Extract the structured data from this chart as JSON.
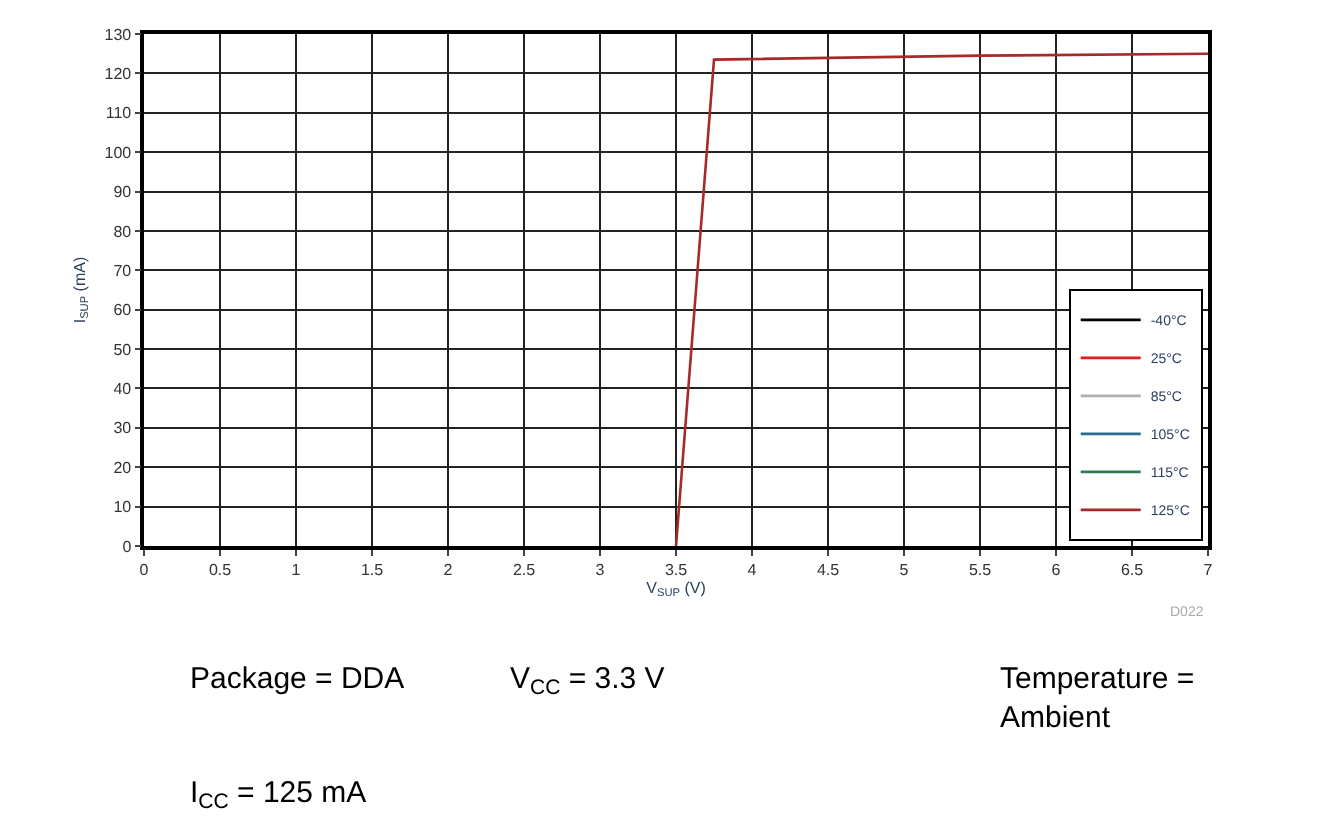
{
  "chart_data": {
    "type": "line",
    "xlabel": "V$_{SUP}$ (V)",
    "ylabel": "I$_{SUP}$ (mA)",
    "xlim": [
      0,
      7
    ],
    "xticks": [
      0,
      0.5,
      1,
      1.5,
      2,
      2.5,
      3,
      3.5,
      4,
      4.5,
      5,
      5.5,
      6,
      6.5,
      7
    ],
    "ylim": [
      0,
      130
    ],
    "yticks": [
      0,
      10,
      20,
      30,
      40,
      50,
      60,
      70,
      80,
      90,
      100,
      110,
      120,
      130
    ],
    "grid": true,
    "legend": "bottom right",
    "marker": "none",
    "line_style": "solid",
    "series": [
      {
        "name": "-40°C",
        "color": "#000000"
      },
      {
        "name": "25°C",
        "color": "#e41a1c"
      },
      {
        "name": "85°C",
        "color": "#b0b0b0"
      },
      {
        "name": "105°C",
        "color": "#2b6c8f"
      },
      {
        "name": "115°C",
        "color": "#2e7d4f"
      },
      {
        "name": "125°C",
        "color": "#a52a2a",
        "x": [
          3.5,
          3.75,
          5.5,
          7
        ],
        "values": [
          0,
          123.5,
          124.5,
          125
        ]
      }
    ],
    "annotations": [
      "D022",
      "Package = DDA",
      "V$_{CC}$ = 3.3 V",
      "Temperature = Ambient",
      "I$_{CC}$ = 125 mA"
    ]
  }
}
